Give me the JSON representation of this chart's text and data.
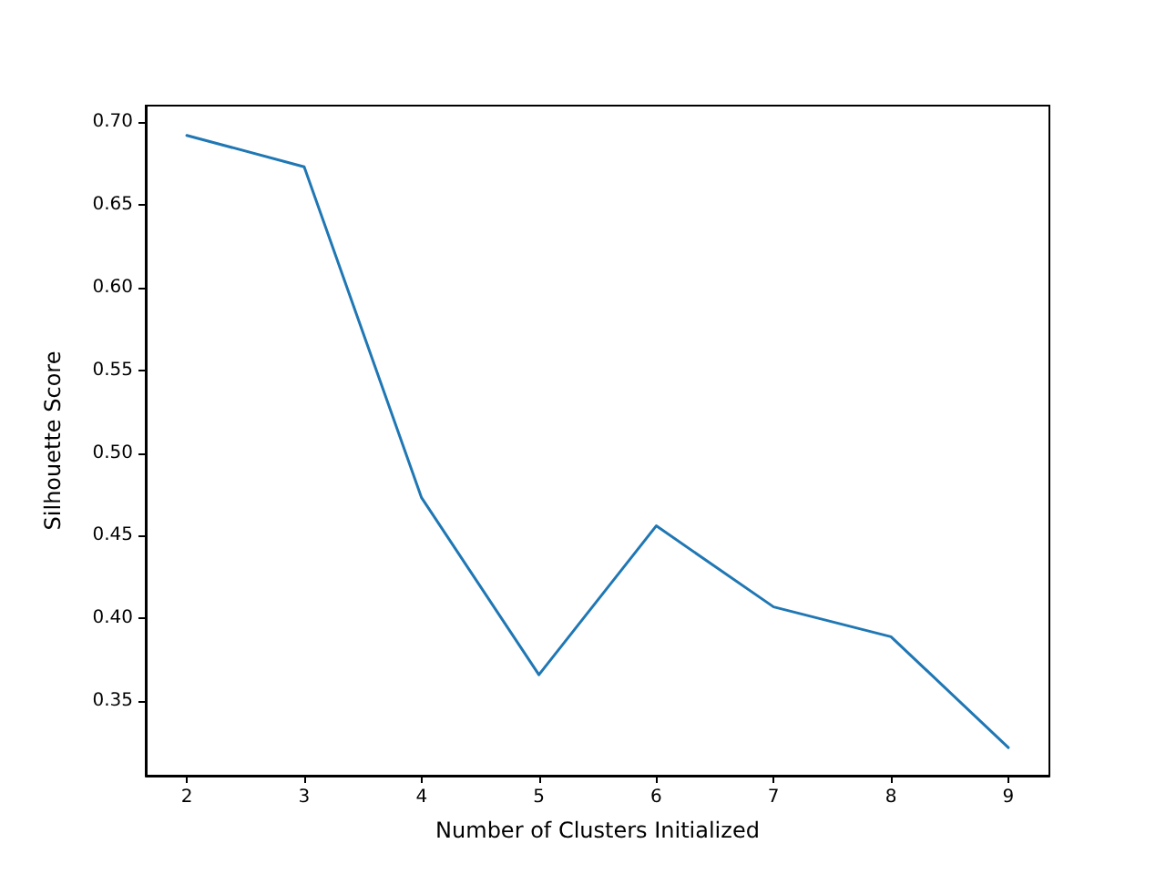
{
  "chart_data": {
    "type": "line",
    "xlabel": "Number of Clusters Initialized",
    "ylabel": "Silhouette Score",
    "x": [
      2,
      3,
      4,
      5,
      6,
      7,
      8,
      9
    ],
    "series": [
      {
        "color": "#1f77b4",
        "values": [
          0.692,
          0.673,
          0.473,
          0.366,
          0.456,
          0.407,
          0.389,
          0.322
        ]
      }
    ],
    "xlim": [
      1.65,
      9.35
    ],
    "xticks": [
      2,
      3,
      4,
      5,
      6,
      7,
      8,
      9
    ],
    "ylim": [
      0.305,
      0.71
    ],
    "yticks": [
      0.35,
      {
        "value": 0.4,
        "label": "0.40"
      },
      0.45,
      {
        "value": 0.5,
        "label": "0.50"
      },
      0.55,
      {
        "value": 0.6,
        "label": "0.60"
      },
      0.65,
      {
        "value": 0.7,
        "label": "0.70"
      }
    ],
    "grid": false,
    "marker": "none",
    "line_style": "solid"
  }
}
